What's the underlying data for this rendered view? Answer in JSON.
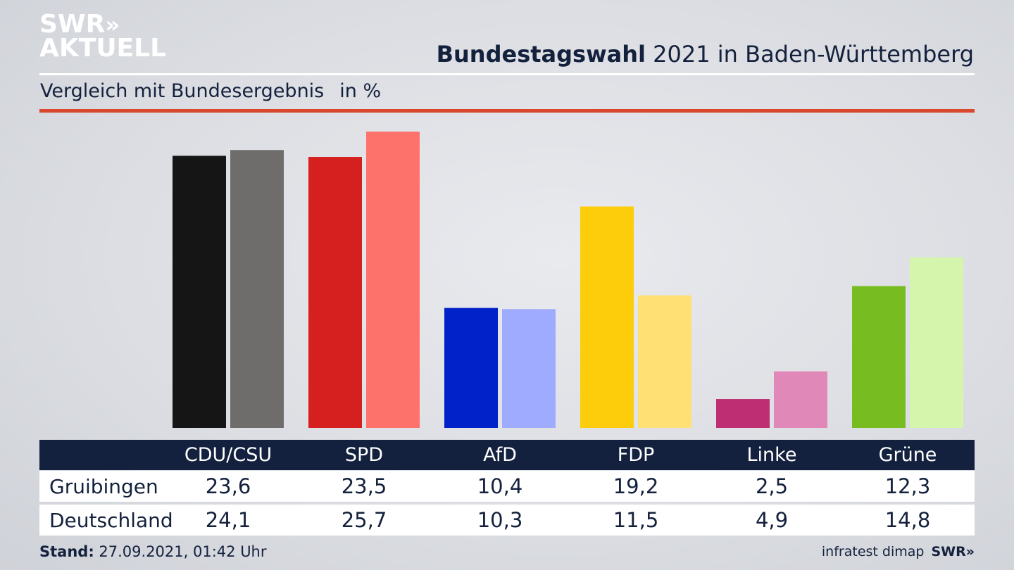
{
  "branding": {
    "logo_line1": "SWR",
    "logo_line1_chevrons": "»",
    "logo_line2": "AKTUELL",
    "footer_source": "infratest dimap",
    "footer_logo": "SWR»"
  },
  "header": {
    "title_bold": "Bundestagswahl",
    "title_rest": "2021 in Baden-Württemberg",
    "subtitle": "Vergleich mit Bundesergebnis",
    "unit": "in %"
  },
  "footer": {
    "stand_label": "Stand:",
    "stand_value": "27.09.2021, 01:42 Uhr"
  },
  "chart_data": {
    "type": "bar",
    "title": "Bundestagswahl 2021 in Baden-Württemberg",
    "subtitle": "Vergleich mit Bundesergebnis",
    "unit": "in %",
    "categories": [
      "CDU/CSU",
      "SPD",
      "AfD",
      "FDP",
      "Linke",
      "Grüne"
    ],
    "series": [
      {
        "name": "Gruibingen",
        "values": [
          23.6,
          23.5,
          10.4,
          19.2,
          2.5,
          12.3
        ]
      },
      {
        "name": "Deutschland",
        "values": [
          24.1,
          25.7,
          10.3,
          11.5,
          4.9,
          14.8
        ]
      }
    ],
    "value_labels": {
      "Gruibingen": [
        "23,6",
        "23,5",
        "10,4",
        "19,2",
        "2,5",
        "12,3"
      ],
      "Deutschland": [
        "24,1",
        "25,7",
        "10,3",
        "11,5",
        "4,9",
        "14,8"
      ]
    },
    "colors": {
      "Gruibingen": [
        "#151515",
        "#d61f1f",
        "#0022c8",
        "#fdcc0a",
        "#bd2e72",
        "#77bd22"
      ],
      "Deutschland": [
        "#6e6d6b",
        "#fd736c",
        "#9eabff",
        "#fee075",
        "#e088b8",
        "#d4f5ab"
      ]
    },
    "ylim": [
      0,
      26
    ],
    "grid": false,
    "legend": "table below chart"
  }
}
